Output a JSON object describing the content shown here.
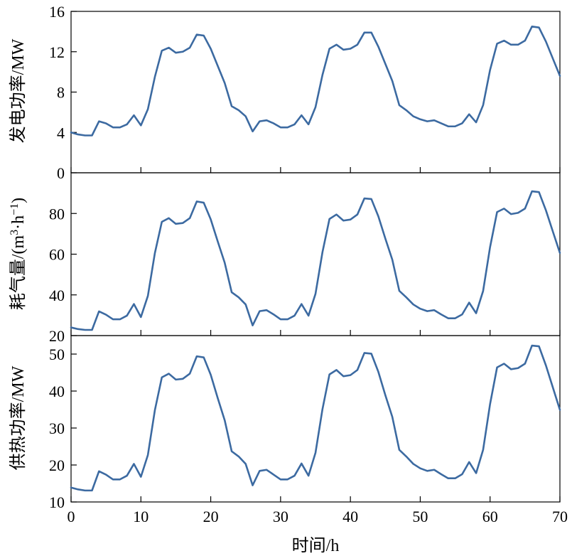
{
  "chart_data": [
    {
      "type": "line",
      "ylabel": "发电功率/MW",
      "xlim": [
        0,
        70
      ],
      "ylim": [
        0,
        16
      ],
      "yticks": [
        0,
        4,
        8,
        12,
        16
      ],
      "series": [
        {
          "color": "#3c6aa1",
          "x": [
            0,
            1,
            2,
            3,
            4,
            5,
            6,
            7,
            8,
            9,
            10,
            11,
            12,
            13,
            14,
            15,
            16,
            17,
            18,
            19,
            20,
            21,
            22,
            23,
            24,
            25,
            26,
            27,
            28,
            29,
            30,
            31,
            32,
            33,
            34,
            35,
            36,
            37,
            38,
            39,
            40,
            41,
            42,
            43,
            44,
            45,
            46,
            47,
            48,
            49,
            50,
            51,
            52,
            53,
            54,
            55,
            56,
            57,
            58,
            59,
            60,
            61,
            62,
            63,
            64,
            65,
            66,
            67,
            68,
            69,
            70
          ],
          "values": [
            4.0,
            3.8,
            3.7,
            3.7,
            5.1,
            4.9,
            4.5,
            4.5,
            4.8,
            5.7,
            4.7,
            6.3,
            9.5,
            12.1,
            12.4,
            11.9,
            12.0,
            12.4,
            13.7,
            13.6,
            12.3,
            10.6,
            8.9,
            6.6,
            6.2,
            5.6,
            4.1,
            5.1,
            5.2,
            4.9,
            4.5,
            4.5,
            4.8,
            5.7,
            4.8,
            6.5,
            9.7,
            12.3,
            12.7,
            12.2,
            12.3,
            12.7,
            13.9,
            13.9,
            12.5,
            10.8,
            9.1,
            6.7,
            6.2,
            5.6,
            5.3,
            5.1,
            5.2,
            4.9,
            4.6,
            4.6,
            4.9,
            5.8,
            5.0,
            6.7,
            10.2,
            12.8,
            13.1,
            12.7,
            12.7,
            13.1,
            14.5,
            14.4,
            13.0,
            11.3,
            9.6
          ]
        }
      ]
    },
    {
      "type": "line",
      "ylabel_main": "耗气量/(m",
      "ylabel_sup1": "3",
      "ylabel_mid": "·h",
      "ylabel_sup2": "−1",
      "ylabel_end": ")",
      "xlim": [
        0,
        70
      ],
      "ylim": [
        20,
        100
      ],
      "yticks": [
        20,
        40,
        60,
        80
      ],
      "series": [
        {
          "color": "#3c6aa1",
          "x": [
            0,
            1,
            2,
            3,
            4,
            5,
            6,
            7,
            8,
            9,
            10,
            11,
            12,
            13,
            14,
            15,
            16,
            17,
            18,
            19,
            20,
            21,
            22,
            23,
            24,
            25,
            26,
            27,
            28,
            29,
            30,
            31,
            32,
            33,
            34,
            35,
            36,
            37,
            38,
            39,
            40,
            41,
            42,
            43,
            44,
            45,
            46,
            47,
            48,
            49,
            50,
            51,
            52,
            53,
            54,
            55,
            56,
            57,
            58,
            59,
            60,
            61,
            62,
            63,
            64,
            65,
            66,
            67,
            68,
            69,
            70
          ],
          "values": [
            24.0,
            23.2,
            22.8,
            22.8,
            31.9,
            30.3,
            28.0,
            28.0,
            29.8,
            35.5,
            29.1,
            39.5,
            60.5,
            75.9,
            77.7,
            74.9,
            75.3,
            77.7,
            85.9,
            85.3,
            77.1,
            66.3,
            55.8,
            41.3,
            38.8,
            35.3,
            25.0,
            32.0,
            32.5,
            30.4,
            28.0,
            28.0,
            29.8,
            35.5,
            29.8,
            40.5,
            61.0,
            77.3,
            79.5,
            76.5,
            77.0,
            79.5,
            87.4,
            87.1,
            78.6,
            67.7,
            57.3,
            42.0,
            38.8,
            35.3,
            33.2,
            32.0,
            32.5,
            30.4,
            28.5,
            28.5,
            30.4,
            36.2,
            31.0,
            41.9,
            63.5,
            80.7,
            82.4,
            79.7,
            80.3,
            82.4,
            90.9,
            90.5,
            81.5,
            71.0,
            60.6
          ]
        }
      ]
    },
    {
      "type": "line",
      "ylabel": "供热功率/MW",
      "xlabel": "时间/h",
      "xlim": [
        0,
        70
      ],
      "ylim": [
        10,
        55
      ],
      "yticks": [
        10,
        20,
        30,
        40,
        50
      ],
      "xticks": [
        0,
        10,
        20,
        30,
        40,
        50,
        60,
        70
      ],
      "series": [
        {
          "color": "#3c6aa1",
          "x": [
            0,
            1,
            2,
            3,
            4,
            5,
            6,
            7,
            8,
            9,
            10,
            11,
            12,
            13,
            14,
            15,
            16,
            17,
            18,
            19,
            20,
            21,
            22,
            23,
            24,
            25,
            26,
            27,
            28,
            29,
            30,
            31,
            32,
            33,
            34,
            35,
            36,
            37,
            38,
            39,
            40,
            41,
            42,
            43,
            44,
            45,
            46,
            47,
            48,
            49,
            50,
            51,
            52,
            53,
            54,
            55,
            56,
            57,
            58,
            59,
            60,
            61,
            62,
            63,
            64,
            65,
            66,
            67,
            68,
            69,
            70
          ],
          "values": [
            13.9,
            13.4,
            13.1,
            13.1,
            18.3,
            17.4,
            16.1,
            16.1,
            17.1,
            20.3,
            16.8,
            22.7,
            34.8,
            43.7,
            44.7,
            43.1,
            43.3,
            44.7,
            49.4,
            49.1,
            44.4,
            38.1,
            32.1,
            23.7,
            22.3,
            20.3,
            14.5,
            18.4,
            18.7,
            17.4,
            16.1,
            16.1,
            17.1,
            20.4,
            17.1,
            23.3,
            35.1,
            44.5,
            45.7,
            44.0,
            44.3,
            45.7,
            50.3,
            50.1,
            45.2,
            38.9,
            33.0,
            24.1,
            22.3,
            20.3,
            19.1,
            18.4,
            18.7,
            17.5,
            16.4,
            16.4,
            17.5,
            20.8,
            17.8,
            24.1,
            36.5,
            46.4,
            47.4,
            45.9,
            46.2,
            47.4,
            52.3,
            52.1,
            46.9,
            40.9,
            34.9
          ]
        }
      ]
    }
  ]
}
